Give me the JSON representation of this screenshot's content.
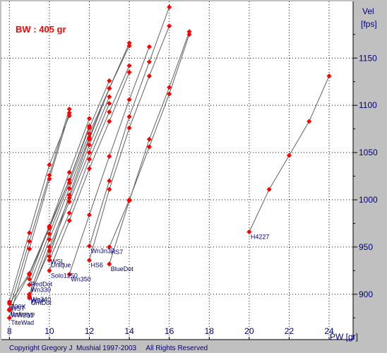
{
  "chart_data": {
    "type": "scatter",
    "title": "BW : 405 gr",
    "xlabel": "PW [gr]",
    "ylabel_line1": "Vel",
    "ylabel_line2": "[fps]",
    "copyright": "Copyright Gregory J  Mushial 1997-2003     All Rights Reserved",
    "xlim": [
      7.6,
      25.2
    ],
    "ylim": [
      852,
      1210
    ],
    "x_ticks": [
      8,
      10,
      12,
      14,
      16,
      18,
      20,
      22,
      24
    ],
    "y_ticks": [
      900,
      950,
      1000,
      1050,
      1100,
      1150
    ],
    "grid": true,
    "colors": {
      "background": "#ffffff",
      "frame": "#c0c0c0",
      "title": "#ff0000",
      "marker": "#ff0000",
      "line": "#606060",
      "grid": "#000000",
      "label": "#000080"
    },
    "series": [
      {
        "name": "TiteWad",
        "x": [
          8,
          9,
          10,
          11
        ],
        "y": [
          875,
          948,
          1022,
          1092
        ]
      },
      {
        "name": "Bullseye",
        "x": [
          8,
          9,
          10,
          11
        ],
        "y": [
          884,
          956,
          1026,
          1096
        ]
      },
      {
        "name": "700X",
        "x": [
          8,
          9,
          10,
          11
        ],
        "y": [
          892,
          965,
          1037,
          1089
        ]
      },
      {
        "name": "WW231",
        "x": [
          8,
          9,
          10,
          11,
          12
        ],
        "y": [
          883,
          921,
          970,
          1021,
          1078
        ]
      },
      {
        "name": "WST",
        "x": [
          8,
          9,
          10,
          11,
          12
        ],
        "y": [
          890,
          922,
          972,
          1029,
          1086
        ]
      },
      {
        "name": "GrnDot",
        "x": [
          9,
          10,
          11,
          12,
          13
        ],
        "y": [
          896,
          950,
          1002,
          1058,
          1109
        ]
      },
      {
        "name": "RedDot",
        "x": [
          9,
          10,
          11,
          12,
          13
        ],
        "y": [
          916,
          972,
          1021,
          1076,
          1126
        ]
      },
      {
        "name": "Unique",
        "x": [
          10,
          11,
          12,
          13,
          14
        ],
        "y": [
          936,
          986,
          1043,
          1093,
          1142
        ]
      },
      {
        "name": "Solo1250",
        "x": [
          10,
          11,
          12,
          13,
          14
        ],
        "y": [
          925,
          978,
          1033,
          1083,
          1135
        ]
      },
      {
        "name": "WSF",
        "x": [
          9,
          10,
          11,
          12,
          13
        ],
        "y": [
          898,
          946,
          998,
          1050,
          1102
        ]
      },
      {
        "name": "Wn340",
        "x": [
          9,
          10,
          11,
          12,
          13,
          14
        ],
        "y": [
          900,
          958,
          1012,
          1066,
          1118,
          1163
        ]
      },
      {
        "name": "Wn330",
        "x": [
          9,
          10,
          11,
          12,
          13
        ],
        "y": [
          910,
          964,
          1018,
          1070,
          1118
        ]
      },
      {
        "name": "Wn350",
        "x": [
          11,
          12,
          13,
          14,
          15
        ],
        "y": [
          921,
          984,
          1046,
          1106,
          1162
        ]
      },
      {
        "name": "HS6",
        "x": [
          12,
          13,
          14,
          15,
          16
        ],
        "y": [
          936,
          1011,
          1076,
          1131,
          1184
        ]
      },
      {
        "name": "WSL",
        "x": [
          10,
          11,
          12,
          13,
          14
        ],
        "y": [
          940,
          1005,
          1064,
          1118,
          1166
        ]
      },
      {
        "name": "Wn3n37",
        "x": [
          12,
          13,
          14,
          15,
          16
        ],
        "y": [
          951,
          1020,
          1088,
          1146,
          1204
        ]
      },
      {
        "name": "HS7",
        "x": [
          13,
          14,
          15,
          16,
          17
        ],
        "y": [
          950,
          1000,
          1056,
          1112,
          1175
        ]
      },
      {
        "name": "BlueDot",
        "x": [
          13,
          14,
          15,
          16,
          17
        ],
        "y": [
          932,
          999,
          1064,
          1119,
          1178
        ]
      },
      {
        "name": "H4227",
        "x": [
          20,
          21,
          22,
          23,
          24
        ],
        "y": [
          966,
          1011,
          1047,
          1083,
          1131
        ]
      }
    ]
  }
}
